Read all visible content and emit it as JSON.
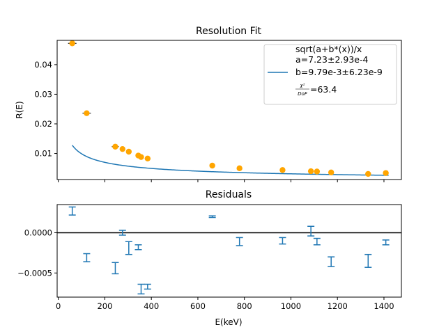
{
  "chart_data": [
    {
      "type": "scatter",
      "title": "Resolution Fit",
      "xlabel": "",
      "ylabel": "R(E)",
      "xlim": [
        -5,
        1475
      ],
      "ylim": [
        0.0012,
        0.0482
      ],
      "xticks": [
        0,
        200,
        400,
        600,
        800,
        1000,
        1200,
        1400
      ],
      "show_xtick_labels": false,
      "yticks": [
        0.01,
        0.02,
        0.03,
        0.04
      ],
      "ytick_labels": [
        "0.01",
        "0.02",
        "0.03",
        "0.04"
      ],
      "grid": false,
      "legend_position": "top-right",
      "legend": {
        "lines": [
          "sqrt(a+b*(x))/x",
          "a=7.23±2.93e-4",
          "b=9.79e-3±6.23e-9"
        ],
        "chi_num": "χ²",
        "chi_den": "DoF",
        "chi_value": "=63.4"
      },
      "series": [
        {
          "type": "scatter",
          "color": "#ffa500",
          "points": [
            {
              "x": 60,
              "y": 0.0472,
              "xerr": 18
            },
            {
              "x": 122,
              "y": 0.0236,
              "xerr": 18
            },
            {
              "x": 245,
              "y": 0.0123,
              "xerr": 15
            },
            {
              "x": 276,
              "y": 0.0115,
              "xerr": 10
            },
            {
              "x": 303,
              "y": 0.0106,
              "xerr": 10
            },
            {
              "x": 344,
              "y": 0.0093,
              "xerr": 10
            },
            {
              "x": 356,
              "y": 0.0088,
              "xerr": 10
            },
            {
              "x": 384,
              "y": 0.0083,
              "xerr": 12
            },
            {
              "x": 662,
              "y": 0.0059,
              "xerr": 10
            },
            {
              "x": 779,
              "y": 0.005,
              "xerr": 10
            },
            {
              "x": 964,
              "y": 0.0044,
              "xerr": 10
            },
            {
              "x": 1086,
              "y": 0.004,
              "xerr": 10
            },
            {
              "x": 1112,
              "y": 0.0039,
              "xerr": 10
            },
            {
              "x": 1173,
              "y": 0.0036,
              "xerr": 10
            },
            {
              "x": 1332,
              "y": 0.0031,
              "xerr": 10
            },
            {
              "x": 1408,
              "y": 0.0034,
              "xerr": 10
            }
          ]
        },
        {
          "type": "line",
          "color": "#1f77b4",
          "fit": {
            "a": 0.000723,
            "b": 0.00979,
            "x_from": 60,
            "x_to": 1420
          }
        }
      ]
    },
    {
      "type": "scatter",
      "title": "Residuals",
      "xlabel": "E(keV)",
      "ylabel": "",
      "xlim": [
        -5,
        1475
      ],
      "ylim": [
        -0.0008,
        0.00035
      ],
      "xticks": [
        0,
        200,
        400,
        600,
        800,
        1000,
        1200,
        1400
      ],
      "xtick_labels": [
        "0",
        "200",
        "400",
        "600",
        "800",
        "1000",
        "1200",
        "1400"
      ],
      "yticks": [
        0,
        -0.0005
      ],
      "ytick_labels": [
        "0.0000",
        "−0.0005"
      ],
      "grid": false,
      "zero_line": true,
      "series": [
        {
          "type": "errorbar",
          "color": "#1f77b4",
          "points": [
            {
              "x": 60,
              "y": 0.00027,
              "err": 5e-05
            },
            {
              "x": 122,
              "y": -0.00031,
              "err": 5e-05
            },
            {
              "x": 245,
              "y": -0.00044,
              "err": 7e-05
            },
            {
              "x": 276,
              "y": 0.0,
              "err": 3e-05
            },
            {
              "x": 303,
              "y": -0.00019,
              "err": 8e-05
            },
            {
              "x": 344,
              "y": -0.00018,
              "err": 3e-05
            },
            {
              "x": 356,
              "y": -0.0007,
              "err": 6e-05
            },
            {
              "x": 384,
              "y": -0.00067,
              "err": 3e-05
            },
            {
              "x": 662,
              "y": 0.0002,
              "err": 1e-05
            },
            {
              "x": 779,
              "y": -0.00011,
              "err": 5e-05
            },
            {
              "x": 964,
              "y": -0.0001,
              "err": 4e-05
            },
            {
              "x": 1086,
              "y": 2e-05,
              "err": 6e-05
            },
            {
              "x": 1112,
              "y": -0.00011,
              "err": 4e-05
            },
            {
              "x": 1173,
              "y": -0.00036,
              "err": 6e-05
            },
            {
              "x": 1332,
              "y": -0.00035,
              "err": 8e-05
            },
            {
              "x": 1408,
              "y": -0.00012,
              "err": 3e-05
            }
          ]
        }
      ]
    }
  ]
}
